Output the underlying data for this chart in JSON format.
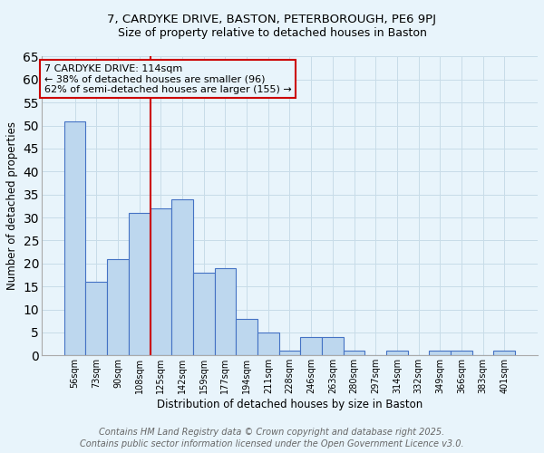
{
  "title_line1": "7, CARDYKE DRIVE, BASTON, PETERBOROUGH, PE6 9PJ",
  "title_line2": "Size of property relative to detached houses in Baston",
  "xlabel": "Distribution of detached houses by size in Baston",
  "ylabel": "Number of detached properties",
  "categories": [
    "56sqm",
    "73sqm",
    "90sqm",
    "108sqm",
    "125sqm",
    "142sqm",
    "159sqm",
    "177sqm",
    "194sqm",
    "211sqm",
    "228sqm",
    "246sqm",
    "263sqm",
    "280sqm",
    "297sqm",
    "314sqm",
    "332sqm",
    "349sqm",
    "366sqm",
    "383sqm",
    "401sqm"
  ],
  "values": [
    51,
    16,
    21,
    31,
    32,
    34,
    18,
    19,
    8,
    5,
    1,
    4,
    4,
    1,
    0,
    1,
    0,
    1,
    1,
    0,
    1
  ],
  "bar_color": "#bdd7ee",
  "bar_edge_color": "#4472c4",
  "grid_color": "#c8dce8",
  "background_color": "#e8f4fb",
  "vline_x_index": 3.5,
  "vline_color": "#cc0000",
  "annotation_line1": "7 CARDYKE DRIVE: 114sqm",
  "annotation_line2": "← 38% of detached houses are smaller (96)",
  "annotation_line3": "62% of semi-detached houses are larger (155) →",
  "annotation_box_color": "#cc0000",
  "annotation_text_color": "#000000",
  "ylim": [
    0,
    65
  ],
  "yticks": [
    0,
    5,
    10,
    15,
    20,
    25,
    30,
    35,
    40,
    45,
    50,
    55,
    60,
    65
  ],
  "footnote_line1": "Contains HM Land Registry data © Crown copyright and database right 2025.",
  "footnote_line2": "Contains public sector information licensed under the Open Government Licence v3.0.",
  "footnote_color": "#666666",
  "footnote_fontsize": 7
}
